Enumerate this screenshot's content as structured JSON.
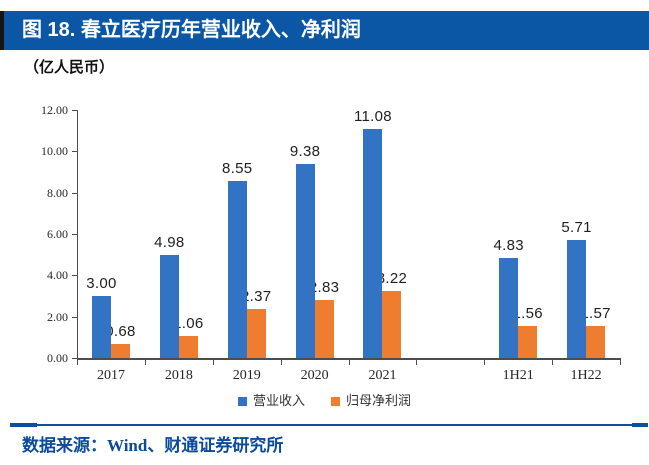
{
  "header": {
    "title": "图 18. 春立医疗历年营业收入、净利润"
  },
  "subtitle": "（亿人民币）",
  "footer": {
    "source": "数据来源：Wind、财通证券研究所"
  },
  "colors": {
    "revenue_blue": "#3273c3",
    "profit_orange": "#ee7d2f",
    "header_bg": "#0b57a5",
    "footer_text": "#0b4a9c",
    "separator": "#0d4f9f"
  },
  "chart_data": {
    "type": "bar",
    "title": "春立医疗历年营业收入、净利润",
    "unit_label": "（亿人民币）",
    "categories": [
      "2017",
      "2018",
      "2019",
      "2020",
      "2021",
      "",
      "1H21",
      "1H22"
    ],
    "series": [
      {
        "name": "营业收入",
        "color": "#3273c3",
        "values": [
          3.0,
          4.98,
          8.55,
          9.38,
          11.08,
          null,
          4.83,
          5.71
        ]
      },
      {
        "name": "归母净利润",
        "color": "#ee7d2f",
        "values": [
          0.68,
          1.06,
          2.37,
          2.83,
          3.22,
          null,
          1.56,
          1.57
        ]
      }
    ],
    "ylim": [
      0,
      12
    ],
    "ytick_step": 2,
    "ytick_labels": [
      "0.00",
      "2.00",
      "4.00",
      "6.00",
      "8.00",
      "10.00",
      "12.00"
    ],
    "grid": false,
    "legend_position": "bottom",
    "data_labels": true
  }
}
